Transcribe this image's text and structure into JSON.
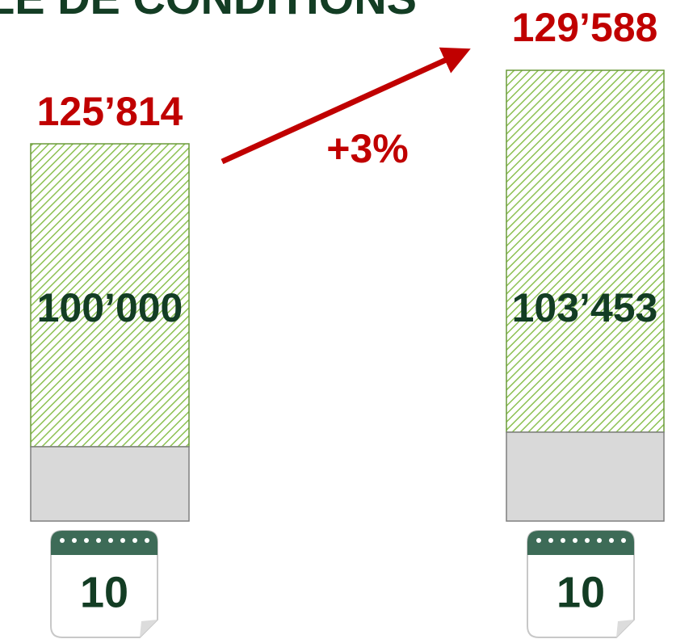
{
  "header": {
    "title": "LE DE CONDITIONS"
  },
  "columns": [
    {
      "total": "125’814",
      "inner": "100’000",
      "calendar": "10"
    },
    {
      "total": "129’588",
      "inner": "103’453",
      "calendar": "10"
    }
  ],
  "arrow": {
    "label": "+3%"
  }
}
